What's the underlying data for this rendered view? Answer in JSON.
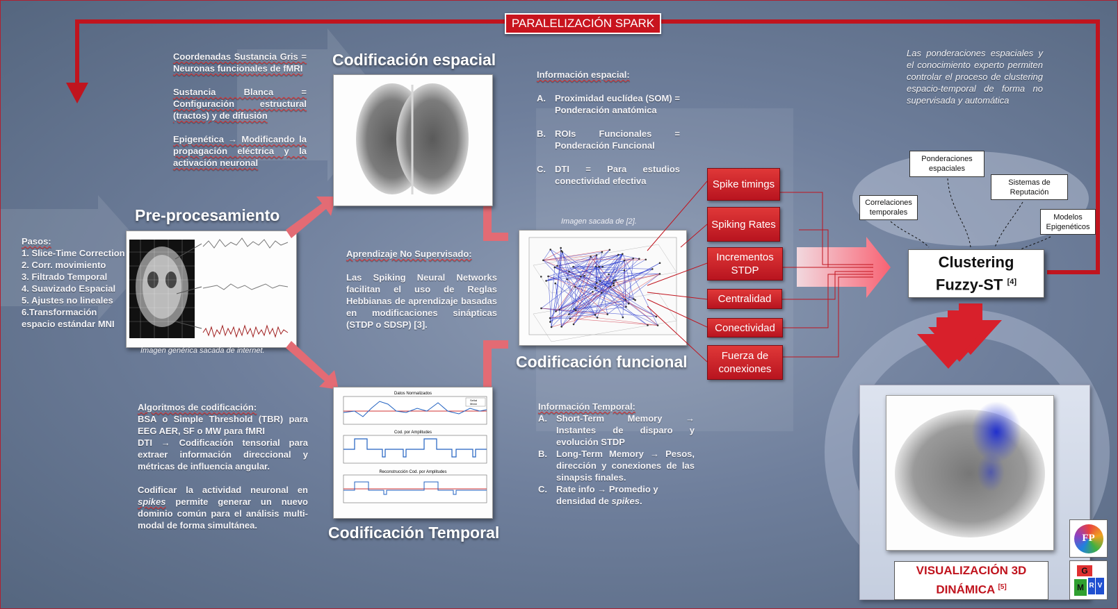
{
  "banner": "PARALELIZACIÓN SPARK",
  "left": {
    "steps_title": "Pasos:",
    "steps": [
      "1. Slice-Time Correction",
      "2. Corr. movimiento",
      "3. Filtrado Temporal",
      "4. Suavizado Espacial",
      "5. Ajustes no lineales",
      "6.Transformación espacio estándar MNI"
    ]
  },
  "top_left_text": {
    "p1": "Coordenadas Sustancia Gris = Neuronas funcionales de fMRI",
    "p2": "Sustancia Blanca = Configuración estructural (tractos) y de difusión",
    "p3": "Epigenética → Modificando la propagación eléctrica y la activación neuronal"
  },
  "preproc": {
    "title": "Pre-procesamiento",
    "caption": "Imagen genérica sacada de internet."
  },
  "codif_espacial": {
    "title": "Codificación espacial"
  },
  "codif_temporal": {
    "title": "Codificación Temporal",
    "plot_titles": [
      "Datos Normalizados",
      "Cod. por Amplitudes",
      "Reconstrucción Cod. por Amplitudes"
    ],
    "legend": [
      "Señal",
      "Mean"
    ]
  },
  "codif_funcional": {
    "title": "Codificación funcional",
    "caption": "Imagen sacada de [2]."
  },
  "bottom_left_text": {
    "title": "Algoritmos de codificación:",
    "p1": "BSA o Simple Threshold (TBR) para EEG AER, SF o MW para fMRI",
    "p2": "DTI → Codificación tensorial para extraer información direccional y métricas de influencia angular.",
    "p3_a": "Codificar la actividad neuronal en ",
    "p3_em": "spikes",
    "p3_b": " permite generar un nuevo dominio común para el análisis multi-modal de forma simultánea."
  },
  "center_text": {
    "title": "Aprendizaje No Supervisado:",
    "body": "Las Spiking Neural Networks facilitan el uso de Reglas Hebbianas de aprendizaje basadas en modificaciones sinápticas (STDP o SDSP) [3]."
  },
  "info_espacial": {
    "title": "Información espacial:",
    "items": [
      {
        "letter": "A.",
        "text": "Proximidad euclídea (SOM) = Ponderación anatómica"
      },
      {
        "letter": "B.",
        "text": "ROIs Funcionales = Ponderación Funcional"
      },
      {
        "letter": "C.",
        "text": "DTI = Para estudios conectividad efectiva"
      }
    ]
  },
  "info_temporal": {
    "title": "Información Temporal:",
    "items": [
      {
        "letter": "A.",
        "text": "Short-Term Memory → Instantes de disparo y evolución STDP"
      },
      {
        "letter": "B.",
        "text": "Long-Term Memory → Pesos, dirección y conexiones de las sinapsis finales."
      },
      {
        "letter": "C.",
        "text_a": "Rate info → Promedio y densidad de ",
        "text_em": "spikes",
        "text_b": "."
      }
    ]
  },
  "features": [
    "Spike timings",
    "Spiking Rates",
    "Incrementos STDP",
    "Centralidad",
    "Conectividad",
    "Fuerza de conexiones"
  ],
  "top_right_text": "Las ponderaciones espaciales y el conocimiento experto permiten controlar el proceso de clustering espacio-temporal de forma no supervisada y automática",
  "inputs": [
    "Ponderaciones espaciales",
    "Correlaciones temporales",
    "Sistemas de Reputación",
    "Modelos Epigenéticos"
  ],
  "clustering": {
    "label": "Clustering Fuzzy-ST",
    "ref": "[4]"
  },
  "visual": {
    "label": "VISUALIZACIÓN 3D DINÁMICA",
    "ref": "[5]"
  },
  "logos": {
    "top": "FP",
    "bottom_letters": [
      "G",
      "M",
      "R",
      "V"
    ]
  },
  "colors": {
    "accent_red": "#c0141e",
    "background": "#6f7f9c"
  }
}
